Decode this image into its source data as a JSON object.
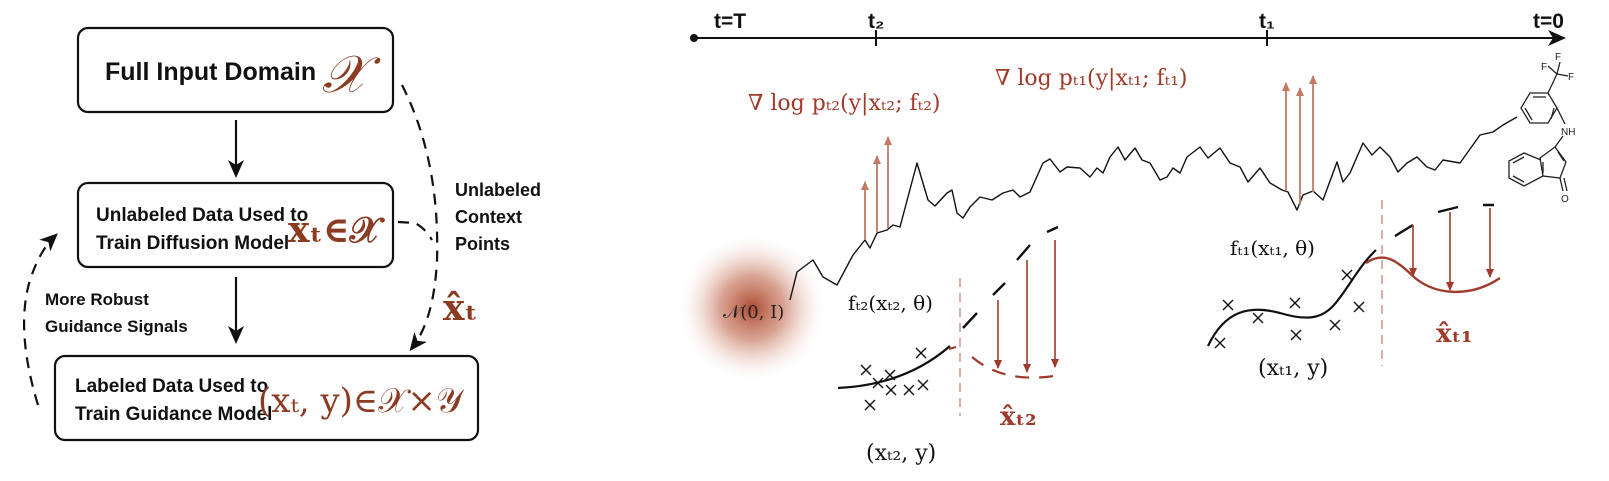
{
  "colors": {
    "accent_brown": "#8a3b22",
    "guidance_red": "#a03a2a",
    "gradient_arrow": "#c27a62",
    "noise_blob": "#b04a30"
  },
  "left_panel": {
    "box_full_domain": {
      "label": "Full Input Domain",
      "symbol": "𝒳"
    },
    "box_unlabeled": {
      "line1": "Unlabeled Data Used to",
      "line2": "Train Diffusion Model",
      "math": "xₜ∈𝒳"
    },
    "box_labeled": {
      "line1": "Labeled Data Used to",
      "line2": "Train Guidance Model",
      "math": "(xₜ, y)∈𝒳×𝒴"
    },
    "side_label_right": {
      "line1": "Unlabeled",
      "line2": "Context",
      "line3": "Points"
    },
    "side_math_right": "x̂ₜ",
    "side_label_left": {
      "line1": "More Robust",
      "line2": "Guidance Signals"
    }
  },
  "right_panel": {
    "timeline": {
      "start": "t=T",
      "t2": "t₂",
      "t1": "t₁",
      "end": "t=0"
    },
    "prior_label": "𝒩(0, I)",
    "grad_t2": "∇ log pₜ₂(y|xₜ₂; fₜ₂)",
    "grad_t1": "∇ log pₜ₁(y|xₜ₁; fₜ₁)",
    "model_t2": "fₜ₂(xₜ₂, θ)",
    "model_t1": "fₜ₁(xₜ₁, θ)",
    "data_t2": "(xₜ₂, y)",
    "data_t1": "(xₜ₁, y)",
    "xhat_t2": "x̂ₜ₂",
    "xhat_t1": "x̂ₜ₁",
    "molecule": {
      "atoms": [
        "F",
        "F",
        "F",
        "NH",
        "O"
      ]
    }
  }
}
